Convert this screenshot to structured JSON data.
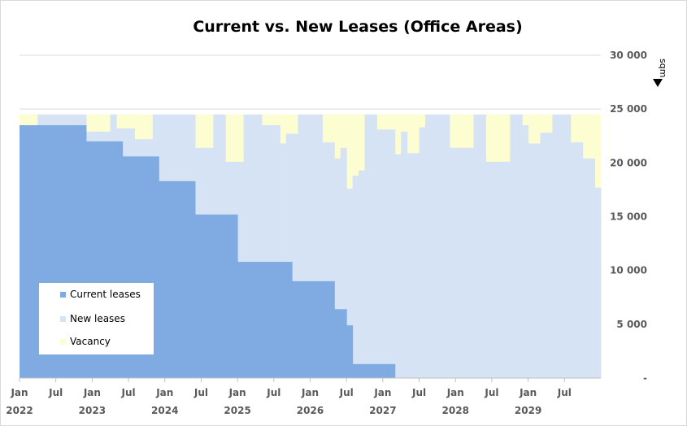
{
  "chart_data": {
    "type": "area",
    "title": "Current vs. New Leases (Office Areas)",
    "unit": "sqm",
    "xlabel": "",
    "ylabel": "",
    "ylim": [
      0,
      30000
    ],
    "y_ticks": [
      {
        "value": 0,
        "label": "-"
      },
      {
        "value": 5000,
        "label": "5 000"
      },
      {
        "value": 10000,
        "label": "10 000"
      },
      {
        "value": 15000,
        "label": "15 000"
      },
      {
        "value": 20000,
        "label": "20 000"
      },
      {
        "value": 25000,
        "label": "25 000"
      },
      {
        "value": 30000,
        "label": "30 000"
      }
    ],
    "x_range": [
      "2022-01",
      "2029-12"
    ],
    "x_ticks": [
      {
        "date": "2022-01",
        "month": "Jan",
        "year": "2022"
      },
      {
        "date": "2022-07",
        "month": "Jul",
        "year": ""
      },
      {
        "date": "2023-01",
        "month": "Jan",
        "year": "2023"
      },
      {
        "date": "2023-07",
        "month": "Jul",
        "year": ""
      },
      {
        "date": "2024-01",
        "month": "Jan",
        "year": "2024"
      },
      {
        "date": "2024-07",
        "month": "Jul",
        "year": ""
      },
      {
        "date": "2025-01",
        "month": "Jan",
        "year": "2025"
      },
      {
        "date": "2025-07",
        "month": "Jul",
        "year": ""
      },
      {
        "date": "2026-01",
        "month": "Jan",
        "year": "2026"
      },
      {
        "date": "2026-07",
        "month": "Jul",
        "year": ""
      },
      {
        "date": "2027-01",
        "month": "Jan",
        "year": "2027"
      },
      {
        "date": "2027-07",
        "month": "Jul",
        "year": ""
      },
      {
        "date": "2028-01",
        "month": "Jan",
        "year": "2028"
      },
      {
        "date": "2028-07",
        "month": "Jul",
        "year": ""
      },
      {
        "date": "2029-01",
        "month": "Jan",
        "year": "2029"
      },
      {
        "date": "2029-07",
        "month": "Jul",
        "year": ""
      }
    ],
    "total_capacity": 24500,
    "series": [
      {
        "name": "Current leases",
        "color": "#7fabe2",
        "steps": [
          {
            "from": "2022-01",
            "value": 23500
          },
          {
            "from": "2022-12",
            "value": 22000
          },
          {
            "from": "2023-06",
            "value": 20600
          },
          {
            "from": "2023-12",
            "value": 18300
          },
          {
            "from": "2024-06",
            "value": 15200
          },
          {
            "from": "2025-01",
            "value": 10800
          },
          {
            "from": "2025-10",
            "value": 9000
          },
          {
            "from": "2026-05",
            "value": 6400
          },
          {
            "from": "2026-07",
            "value": 4900
          },
          {
            "from": "2026-08",
            "value": 1300
          },
          {
            "from": "2027-03",
            "value": 0
          }
        ]
      },
      {
        "name": "New leases",
        "color": "#d5e3f5",
        "steps": [
          {
            "from": "2022-01",
            "value": 23500
          },
          {
            "from": "2022-04",
            "value": 24500
          },
          {
            "from": "2022-12",
            "value": 22900
          },
          {
            "from": "2023-04",
            "value": 24500
          },
          {
            "from": "2023-05",
            "value": 23200
          },
          {
            "from": "2023-08",
            "value": 22200
          },
          {
            "from": "2023-11",
            "value": 24500
          },
          {
            "from": "2024-06",
            "value": 21400
          },
          {
            "from": "2024-09",
            "value": 24500
          },
          {
            "from": "2024-11",
            "value": 20100
          },
          {
            "from": "2025-02",
            "value": 24500
          },
          {
            "from": "2025-05",
            "value": 23500
          },
          {
            "from": "2025-08",
            "value": 21800
          },
          {
            "from": "2025-09",
            "value": 22700
          },
          {
            "from": "2025-11",
            "value": 24500
          },
          {
            "from": "2026-03",
            "value": 21900
          },
          {
            "from": "2026-05",
            "value": 20400
          },
          {
            "from": "2026-06",
            "value": 21400
          },
          {
            "from": "2026-07",
            "value": 17600
          },
          {
            "from": "2026-08",
            "value": 18800
          },
          {
            "from": "2026-09",
            "value": 19300
          },
          {
            "from": "2026-10",
            "value": 24500
          },
          {
            "from": "2026-12",
            "value": 23100
          },
          {
            "from": "2027-03",
            "value": 20800
          },
          {
            "from": "2027-04",
            "value": 22900
          },
          {
            "from": "2027-05",
            "value": 20900
          },
          {
            "from": "2027-07",
            "value": 23300
          },
          {
            "from": "2027-08",
            "value": 24500
          },
          {
            "from": "2027-12",
            "value": 21400
          },
          {
            "from": "2028-04",
            "value": 24500
          },
          {
            "from": "2028-06",
            "value": 20100
          },
          {
            "from": "2028-10",
            "value": 24500
          },
          {
            "from": "2028-12",
            "value": 23500
          },
          {
            "from": "2029-01",
            "value": 21800
          },
          {
            "from": "2029-03",
            "value": 22800
          },
          {
            "from": "2029-05",
            "value": 24500
          },
          {
            "from": "2029-08",
            "value": 21900
          },
          {
            "from": "2029-10",
            "value": 20400
          },
          {
            "from": "2029-12",
            "value": 17700
          }
        ]
      },
      {
        "name": "Vacancy",
        "color": "#fdfdd2",
        "note_from_chart": "fills remaining space up to total capacity"
      }
    ],
    "grid": true,
    "y_axis_side": "right",
    "legend_position": "bottom-left"
  }
}
